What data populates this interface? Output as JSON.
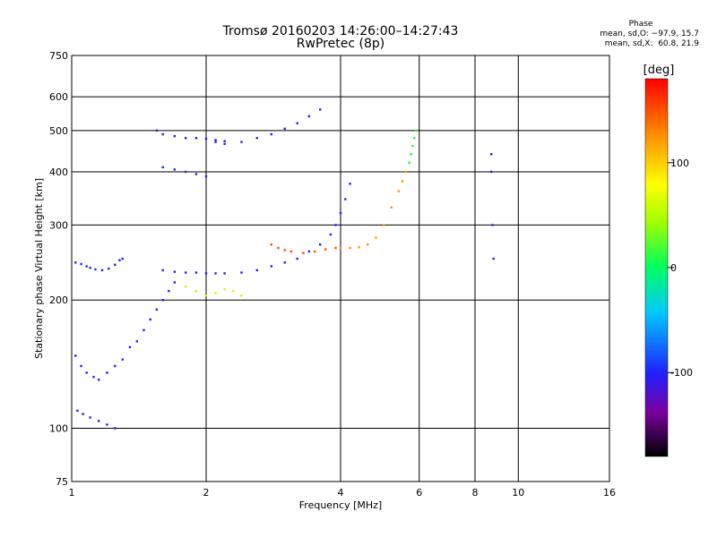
{
  "chart_data": {
    "type": "scatter",
    "title": "Tromsø 20160203 14:26:00–14:27:43",
    "subtitle": "RwPretec (8p)",
    "xlabel": "Frequency [MHz]",
    "ylabel": "Stationary phase Virtual Height [km]",
    "x_scale": "log",
    "y_scale": "log",
    "xlim": [
      1,
      16
    ],
    "ylim": [
      75,
      750
    ],
    "x_ticks": [
      1,
      2,
      4,
      6,
      8,
      10,
      16
    ],
    "y_ticks": [
      75,
      100,
      200,
      300,
      400,
      500,
      600,
      750
    ],
    "grid": true,
    "colorbar": {
      "label": "[deg]",
      "range": [
        -180,
        180
      ],
      "ticks": [
        100,
        0,
        -100
      ],
      "colormap": "black-purple-blue-cyan-green-yellow-orange-red"
    },
    "series": [
      {
        "name": "",
        "color_phase": -100,
        "x": [
          1.02,
          1.05,
          1.08,
          1.1,
          1.13,
          1.17,
          1.21,
          1.25,
          1.28,
          1.3
        ],
        "y": [
          245,
          243,
          240,
          238,
          236,
          235,
          237,
          242,
          248,
          250
        ]
      },
      {
        "name": "",
        "color_phase": -100,
        "x": [
          1.02,
          1.05,
          1.08,
          1.12,
          1.15,
          1.2,
          1.25,
          1.3,
          1.35,
          1.4,
          1.45,
          1.5,
          1.55,
          1.6,
          1.65,
          1.7
        ],
        "y": [
          148,
          140,
          135,
          132,
          130,
          135,
          140,
          145,
          155,
          160,
          170,
          180,
          190,
          200,
          210,
          220
        ]
      },
      {
        "name": "",
        "color_phase": -100,
        "x": [
          1.03,
          1.06,
          1.1,
          1.15,
          1.2,
          1.25
        ],
        "y": [
          110,
          108,
          106,
          104,
          102,
          100
        ]
      },
      {
        "name": "",
        "color_phase": -100,
        "x": [
          1.6,
          1.7,
          1.8,
          1.9,
          2.0,
          2.1,
          2.2,
          2.4,
          2.6,
          2.8,
          3.0,
          3.2,
          3.4,
          3.6,
          3.8,
          3.9,
          4.0,
          4.1,
          4.2
        ],
        "y": [
          235,
          233,
          232,
          232,
          231,
          231,
          231,
          232,
          235,
          240,
          245,
          250,
          260,
          270,
          285,
          300,
          320,
          345,
          375
        ]
      },
      {
        "name": "",
        "color_phase": 125,
        "x": [
          4.0,
          4.2,
          4.4,
          4.6,
          4.8,
          5.0,
          5.2,
          5.4,
          5.5,
          5.6,
          5.7,
          5.75
        ],
        "y": [
          265,
          265,
          266,
          270,
          280,
          300,
          330,
          360,
          380,
          400,
          420,
          440
        ]
      },
      {
        "name": "",
        "color_phase": 150,
        "x": [
          2.8,
          2.9,
          3.0,
          3.1,
          3.3,
          3.5,
          3.7,
          3.9
        ],
        "y": [
          270,
          265,
          262,
          260,
          258,
          260,
          263,
          265
        ]
      },
      {
        "name": "",
        "color_phase": -100,
        "x": [
          1.55,
          1.6,
          1.7,
          1.8,
          1.9,
          2.0,
          2.1,
          2.2
        ],
        "y": [
          500,
          490,
          485,
          480,
          480,
          478,
          475,
          472
        ]
      },
      {
        "name": "",
        "color_phase": -100,
        "x": [
          2.1,
          2.2,
          2.4,
          2.6,
          2.8,
          3.0,
          3.2,
          3.4,
          3.6
        ],
        "y": [
          470,
          465,
          470,
          480,
          490,
          505,
          520,
          540,
          560
        ]
      },
      {
        "name": "",
        "color_phase": -100,
        "x": [
          1.6,
          1.7,
          1.8,
          1.9,
          2.0
        ],
        "y": [
          410,
          405,
          400,
          395,
          390
        ]
      },
      {
        "name": "",
        "color_phase": 60,
        "x": [
          1.8,
          1.9,
          2.0,
          2.1,
          2.2,
          2.3,
          2.4
        ],
        "y": [
          215,
          210,
          205,
          208,
          212,
          210,
          205
        ]
      },
      {
        "name": "",
        "color_phase": 10,
        "x": [
          5.7,
          5.75,
          5.8,
          5.85,
          5.9
        ],
        "y": [
          420,
          440,
          460,
          480,
          500
        ]
      },
      {
        "name": "",
        "color_phase": -110,
        "x": [
          8.7,
          8.7,
          8.75,
          8.8
        ],
        "y": [
          440,
          400,
          300,
          250
        ]
      }
    ]
  }
}
